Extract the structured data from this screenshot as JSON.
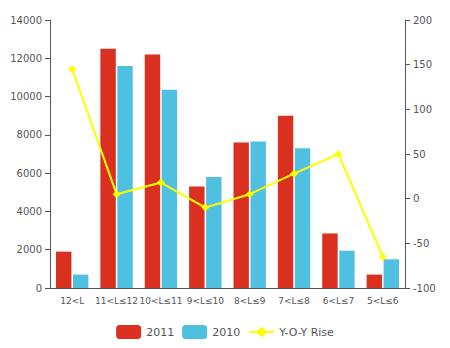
{
  "chart_data": {
    "type": "bar",
    "categories": [
      "12<L",
      "11<L≤12",
      "10<L≤11",
      "9<L≤10",
      "8<L≤9",
      "7<L≤8",
      "6<L≤7",
      "5<L≤6"
    ],
    "series": [
      {
        "name": "2011",
        "color": "#d93020",
        "values": [
          1900,
          12500,
          12200,
          5300,
          7600,
          9000,
          2850,
          700
        ]
      },
      {
        "name": "2010",
        "color": "#50c0e0",
        "values": [
          700,
          11600,
          10350,
          5800,
          7650,
          7300,
          1950,
          1500
        ]
      },
      {
        "name": "Y-O-Y Rise",
        "type": "line",
        "axis": "y2",
        "color": "#ffff00",
        "marker": "diamond",
        "values": [
          145,
          5,
          18,
          -10,
          5,
          28,
          50,
          -65
        ]
      }
    ],
    "ylim": [
      0,
      14000
    ],
    "yticks": [
      0,
      2000,
      4000,
      6000,
      8000,
      10000,
      12000,
      14000
    ],
    "y2lim": [
      -100,
      200
    ],
    "y2ticks": [
      -100,
      -50,
      0,
      50,
      100,
      150,
      200
    ],
    "grid": false,
    "legend": "bottom"
  }
}
